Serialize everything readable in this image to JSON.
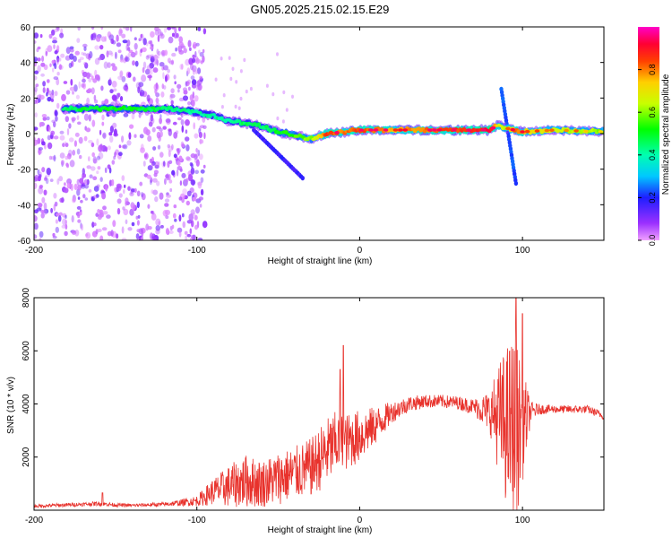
{
  "title": "GN05.2025.215.02.15.E29",
  "colors": {
    "snr_line": "#e8322c",
    "axis": "#000000"
  },
  "chart_data": [
    {
      "type": "heatmap",
      "title": "GN05.2025.215.02.15.E29",
      "xlabel": "Height of straight line (km)",
      "ylabel": "Frequency (Hz)",
      "xlim": [
        -200,
        150
      ],
      "ylim": [
        -60,
        60
      ],
      "x_ticks": [
        "-200",
        "-100",
        "0",
        "100"
      ],
      "x_tick_values": [
        -200,
        -100,
        0,
        100
      ],
      "y_ticks": [
        "60",
        "40",
        "20",
        "0",
        "-20",
        "-40",
        "-60"
      ],
      "y_tick_values": [
        60,
        40,
        20,
        0,
        -20,
        -40,
        -60
      ],
      "grid": false,
      "colorbar": {
        "label": "Normalized spectral amplitude",
        "range": [
          0,
          1
        ],
        "ticks": [
          "0.0",
          "0.2",
          "0.4",
          "0.6",
          "0.8"
        ],
        "tick_values": [
          0.0,
          0.2,
          0.4,
          0.6,
          0.8
        ],
        "colormap": "rainbow (magenta-blue-cyan-green-yellow-red-magenta)"
      },
      "ridge": {
        "description": "dominant frequency track",
        "x": [
          -200,
          -180,
          -160,
          -140,
          -120,
          -100,
          -90,
          -80,
          -70,
          -60,
          -50,
          -40,
          -30,
          -20,
          -10,
          0,
          20,
          40,
          60,
          80,
          85,
          90,
          95,
          100,
          120,
          150
        ],
        "freq": [
          14,
          14,
          14,
          14,
          14,
          12,
          10,
          7,
          6,
          4,
          1,
          -1,
          -3,
          0,
          1,
          2,
          2,
          2,
          2,
          2,
          5,
          3,
          2,
          1,
          2,
          1
        ],
        "amplitude": [
          0.2,
          0.45,
          0.5,
          0.5,
          0.45,
          0.4,
          0.42,
          0.42,
          0.45,
          0.45,
          0.5,
          0.55,
          0.6,
          0.85,
          0.8,
          0.85,
          0.75,
          0.8,
          0.85,
          0.9,
          0.7,
          0.6,
          0.8,
          0.75,
          0.65,
          0.6
        ]
      },
      "features": [
        {
          "x": [
            -65,
            -35
          ],
          "freq": [
            2,
            -25
          ],
          "amplitude": 0.15
        },
        {
          "x": [
            87,
            96
          ],
          "freq": [
            25,
            -28
          ],
          "amplitude": 0.2
        }
      ],
      "scatter_region_x": [
        -200,
        -100
      ]
    },
    {
      "type": "line",
      "xlabel": "Height of straight line (km)",
      "ylabel": "SNR (10 * v/v)",
      "xlim": [
        -200,
        150
      ],
      "ylim": [
        0,
        8000
      ],
      "x_ticks": [
        "-200",
        "-100",
        "0",
        "100"
      ],
      "x_tick_values": [
        -200,
        -100,
        0,
        100
      ],
      "y_ticks": [
        "2000",
        "4000",
        "6000",
        "8000"
      ],
      "y_tick_values": [
        2000,
        4000,
        6000,
        8000
      ],
      "grid": false,
      "series": [
        {
          "color": "#e8322c",
          "envelope_x": [
            -200,
            -180,
            -160,
            -150,
            -140,
            -120,
            -110,
            -100,
            -90,
            -80,
            -70,
            -60,
            -50,
            -40,
            -30,
            -20,
            -13,
            -10,
            0,
            10,
            20,
            30,
            40,
            50,
            60,
            70,
            80,
            85,
            90,
            95,
            100,
            105,
            110,
            120,
            130,
            140,
            150
          ],
          "envelope_mean": [
            150,
            200,
            250,
            200,
            180,
            220,
            280,
            350,
            700,
            900,
            1100,
            1000,
            1200,
            1400,
            1600,
            2200,
            2600,
            2500,
            2800,
            3200,
            3700,
            4000,
            4100,
            4100,
            4050,
            3900,
            3700,
            3500,
            3200,
            3000,
            3200,
            3700,
            3800,
            3800,
            3800,
            3800,
            3550
          ],
          "envelope_amp": [
            60,
            70,
            80,
            70,
            60,
            80,
            120,
            200,
            500,
            800,
            1000,
            900,
            1000,
            1000,
            1100,
            1300,
            1200,
            1100,
            1000,
            700,
            400,
            300,
            250,
            250,
            250,
            300,
            800,
            2000,
            3000,
            3800,
            2200,
            400,
            200,
            150,
            150,
            150,
            150
          ],
          "spikes": [
            {
              "x": -158,
              "y": 650
            },
            {
              "x": -12,
              "y": 5300
            },
            {
              "x": -10,
              "y": 6200
            },
            {
              "x": 96,
              "y": 8000
            },
            {
              "x": 100,
              "y": 7400
            }
          ]
        }
      ]
    }
  ]
}
